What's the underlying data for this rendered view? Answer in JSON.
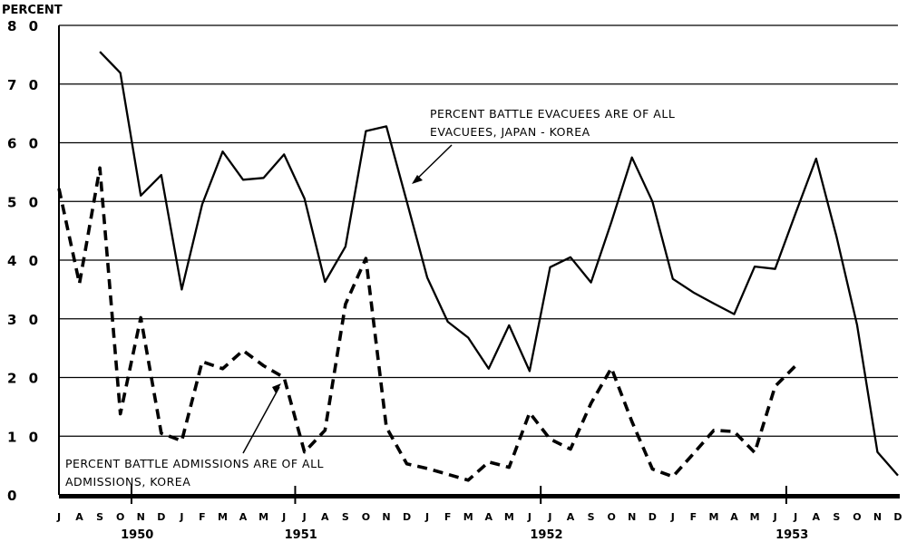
{
  "chart_data": {
    "type": "line",
    "ylabel": "PERCENT",
    "ylim": [
      0,
      80
    ],
    "yticks": [
      "8 0",
      "7 0",
      "6 0",
      "5 0",
      "4 0",
      "3 0",
      "2 0",
      "1 0",
      "0"
    ],
    "grid": true,
    "x": [
      "J",
      "A",
      "S",
      "O",
      "N",
      "D",
      "J",
      "F",
      "M",
      "A",
      "M",
      "J",
      "J",
      "A",
      "S",
      "O",
      "N",
      "D",
      "J",
      "F",
      "M",
      "A",
      "M",
      "J",
      "J",
      "A",
      "S",
      "O",
      "N",
      "D",
      "J",
      "F",
      "M",
      "A",
      "M",
      "J",
      "J",
      "A",
      "S",
      "O",
      "N",
      "D"
    ],
    "years": [
      {
        "label": "1950",
        "month_index": 4
      },
      {
        "label": "1951",
        "month_index": 12
      },
      {
        "label": "1952",
        "month_index": 24
      },
      {
        "label": "1953",
        "month_index": 36
      }
    ],
    "series": [
      {
        "name": "PERCENT BATTLE EVACUEES ARE OF ALL EVACUEES, JAPAN - KOREA",
        "style": "solid",
        "values": [
          null,
          null,
          75.5,
          71.9,
          51.0,
          54.5,
          35.0,
          49.5,
          58.5,
          53.7,
          54.0,
          58.0,
          50.5,
          36.3,
          42.3,
          62.0,
          62.8,
          50.0,
          37.0,
          29.5,
          26.8,
          21.5,
          28.9,
          21.1,
          38.8,
          40.5,
          36.2,
          46.5,
          57.5,
          50.0,
          36.8,
          34.5,
          32.6,
          30.8,
          38.9,
          38.5,
          48.0,
          57.3,
          44.0,
          29.0,
          7.3,
          3.3
        ]
      },
      {
        "name": "PERCENT BATTLE ADMISSIONS ARE OF ALL ADMISSIONS, KOREA",
        "style": "dashed",
        "values": [
          52.2,
          36.0,
          55.7,
          13.8,
          30.2,
          10.5,
          9.2,
          22.7,
          21.5,
          24.6,
          22.0,
          20.0,
          7.3,
          11.0,
          32.5,
          40.3,
          11.5,
          5.3,
          4.5,
          3.5,
          2.5,
          5.6,
          4.7,
          14.0,
          9.5,
          7.8,
          15.6,
          21.6,
          12.5,
          4.4,
          3.1,
          7.0,
          11.0,
          10.8,
          7.2,
          18.5,
          22.0,
          null,
          null,
          null,
          null,
          null
        ]
      }
    ],
    "annotations": [
      {
        "lines": [
          "PERCENT BATTLE EVACUEES ARE OF ALL",
          "EVACUEES, JAPAN - KOREA"
        ]
      },
      {
        "lines": [
          "PERCENT BATTLE ADMISSIONS ARE OF ALL",
          "ADMISSIONS, KOREA"
        ]
      }
    ]
  }
}
